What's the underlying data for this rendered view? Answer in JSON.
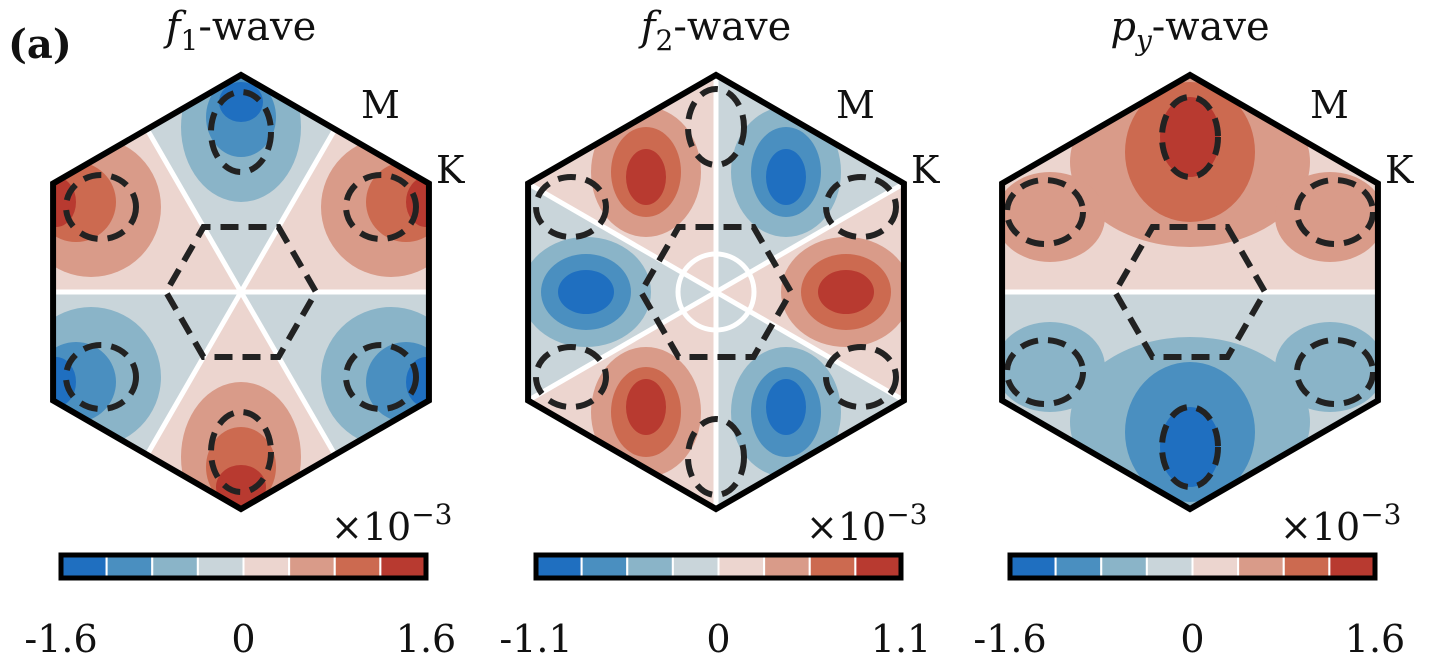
{
  "label": "(a)",
  "panels": [
    {
      "title": {
        "symbol": "f",
        "sub": "1",
        "suffix": "-wave"
      },
      "points": [
        "M",
        "K"
      ],
      "colorbar": {
        "multiplier": "×10",
        "exponent": "−3",
        "lim": [
          -1.6,
          1.6
        ],
        "ticks": [
          -1.6,
          0,
          1.6
        ],
        "colors": [
          "#1f6fc0",
          "#4a8fc0",
          "#8ab4c8",
          "#c9d5da",
          "#ecd5cf",
          "#d99b89",
          "#cc6a50",
          "#b83a30"
        ]
      }
    },
    {
      "title": {
        "symbol": "f",
        "sub": "2",
        "suffix": "-wave"
      },
      "points": [
        "M",
        "K"
      ],
      "colorbar": {
        "multiplier": "×10",
        "exponent": "−3",
        "lim": [
          -1.1,
          1.1
        ],
        "ticks": [
          -1.1,
          0,
          1.1
        ],
        "colors": [
          "#1f6fc0",
          "#4a8fc0",
          "#8ab4c8",
          "#c9d5da",
          "#ecd5cf",
          "#d99b89",
          "#cc6a50",
          "#b83a30"
        ]
      }
    },
    {
      "title": {
        "symbol": "p",
        "sub": "y",
        "suffix": "-wave"
      },
      "points": [
        "M",
        "K"
      ],
      "colorbar": {
        "multiplier": "×10",
        "exponent": "−3",
        "lim": [
          -1.6,
          1.6
        ],
        "ticks": [
          -1.6,
          0,
          1.6
        ],
        "colors": [
          "#1f6fc0",
          "#4a8fc0",
          "#8ab4c8",
          "#c9d5da",
          "#ecd5cf",
          "#d99b89",
          "#cc6a50",
          "#b83a30"
        ]
      }
    }
  ]
}
